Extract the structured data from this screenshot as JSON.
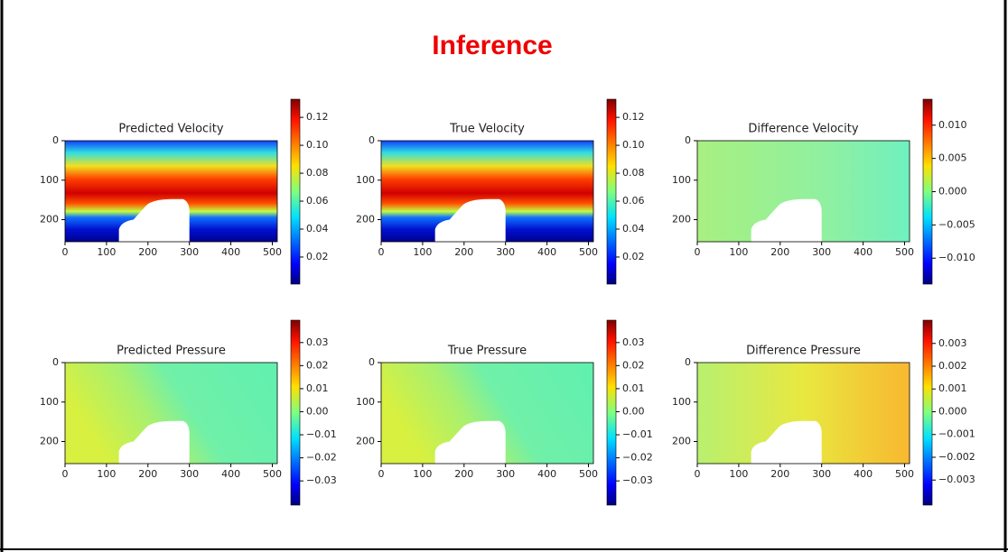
{
  "page_title": "Inference",
  "chart_data": [
    {
      "type": "heatmap",
      "title": "Predicted Velocity",
      "colormap": "jet",
      "xlim": [
        0,
        512
      ],
      "ylim": [
        256,
        0
      ],
      "xticks": [
        0,
        100,
        200,
        300,
        400,
        500
      ],
      "yticks": [
        0,
        100,
        200
      ],
      "clim": [
        0.0006,
        0.133
      ],
      "cticks": [
        0.02,
        0.04,
        0.06,
        0.08,
        {
          "value": 0.1,
          "label": "0.10"
        },
        0.12
      ]
    },
    {
      "type": "heatmap",
      "title": "True Velocity",
      "colormap": "jet",
      "xlim": [
        0,
        512
      ],
      "ylim": [
        256,
        0
      ],
      "xticks": [
        0,
        100,
        200,
        300,
        400,
        500
      ],
      "yticks": [
        0,
        100,
        200
      ],
      "clim": [
        0.0006,
        0.133
      ],
      "cticks": [
        0.02,
        0.04,
        0.06,
        0.08,
        {
          "value": 0.1,
          "label": "0.10"
        },
        0.12
      ]
    },
    {
      "type": "heatmap",
      "title": "Difference Velocity",
      "colormap": "jet",
      "xlim": [
        0,
        512
      ],
      "ylim": [
        256,
        0
      ],
      "xticks": [
        0,
        100,
        200,
        300,
        400,
        500
      ],
      "yticks": [
        0,
        100,
        200
      ],
      "clim": [
        -0.0139,
        0.0139
      ],
      "cticks": [
        {
          "value": -0.01,
          "label": "−0.010"
        },
        {
          "value": -0.005,
          "label": "−0.005"
        },
        {
          "value": 0,
          "label": "0.000"
        },
        {
          "value": 0.005,
          "label": "0.005"
        },
        {
          "value": 0.01,
          "label": "0.010"
        }
      ]
    },
    {
      "type": "heatmap",
      "title": "Predicted Pressure",
      "colormap": "jet",
      "xlim": [
        0,
        512
      ],
      "ylim": [
        256,
        0
      ],
      "xticks": [
        0,
        100,
        200,
        300,
        400,
        500
      ],
      "yticks": [
        0,
        100,
        200
      ],
      "clim": [
        -0.0405,
        0.0397
      ],
      "cticks": [
        {
          "value": -0.03,
          "label": "−0.03"
        },
        {
          "value": -0.02,
          "label": "−0.02"
        },
        {
          "value": -0.01,
          "label": "−0.01"
        },
        {
          "value": 0,
          "label": "0.00"
        },
        0.01,
        0.02,
        0.03
      ]
    },
    {
      "type": "heatmap",
      "title": "True Pressure",
      "colormap": "jet",
      "xlim": [
        0,
        512
      ],
      "ylim": [
        256,
        0
      ],
      "xticks": [
        0,
        100,
        200,
        300,
        400,
        500
      ],
      "yticks": [
        0,
        100,
        200
      ],
      "clim": [
        -0.0405,
        0.0397
      ],
      "cticks": [
        {
          "value": -0.03,
          "label": "−0.03"
        },
        {
          "value": -0.02,
          "label": "−0.02"
        },
        {
          "value": -0.01,
          "label": "−0.01"
        },
        {
          "value": 0,
          "label": "0.00"
        },
        0.01,
        0.02,
        0.03
      ]
    },
    {
      "type": "heatmap",
      "title": "Difference Pressure",
      "colormap": "jet",
      "xlim": [
        0,
        512
      ],
      "ylim": [
        256,
        0
      ],
      "xticks": [
        0,
        100,
        200,
        300,
        400,
        500
      ],
      "yticks": [
        0,
        100,
        200
      ],
      "clim": [
        -0.0041,
        0.00402
      ],
      "cticks": [
        {
          "value": -0.003,
          "label": "−0.003"
        },
        {
          "value": -0.002,
          "label": "−0.002"
        },
        {
          "value": -0.001,
          "label": "−0.001"
        },
        {
          "value": 0,
          "label": "0.000"
        },
        0.001,
        0.002,
        0.003
      ]
    }
  ]
}
